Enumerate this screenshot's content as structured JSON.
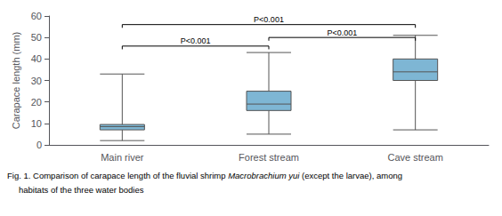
{
  "chart_data": {
    "type": "boxplot",
    "categories": [
      "Main river",
      "Forest stream",
      "Cave stream"
    ],
    "boxes": [
      {
        "whislo": 2,
        "q1": 7,
        "med": 8.5,
        "q3": 9.5,
        "whishi": 33
      },
      {
        "whislo": 5,
        "q1": 16,
        "med": 19,
        "q3": 25,
        "whishi": 43
      },
      {
        "whislo": 7,
        "q1": 30,
        "med": 34,
        "q3": 40,
        "whishi": 51
      }
    ],
    "color": "#7EB6D4",
    "ylabel": "Carapace length (mm)",
    "ylim": [
      0,
      60
    ],
    "yticks": [
      0,
      10,
      20,
      30,
      40,
      50,
      60
    ],
    "grid": false,
    "annotations": [
      {
        "from": "Main river",
        "to": "Forest stream",
        "y": 46,
        "label": "P<0.001"
      },
      {
        "from": "Main river",
        "to": "Cave stream",
        "y": 56,
        "label": "P<0.001"
      },
      {
        "from": "Forest stream",
        "to": "Cave stream",
        "y": 50,
        "label": "P<0.001"
      }
    ],
    "caption": [
      [
        {
          "text": "Fig. 1. Comparison of carapace length of the fluvial shrimp ",
          "italic": false
        },
        {
          "text": "Macrobrachium yui",
          "italic": true
        },
        {
          "text": " (except the larvae), among",
          "italic": false
        }
      ],
      [
        {
          "text": "habitats of the three water bodies",
          "italic": false
        }
      ]
    ]
  }
}
